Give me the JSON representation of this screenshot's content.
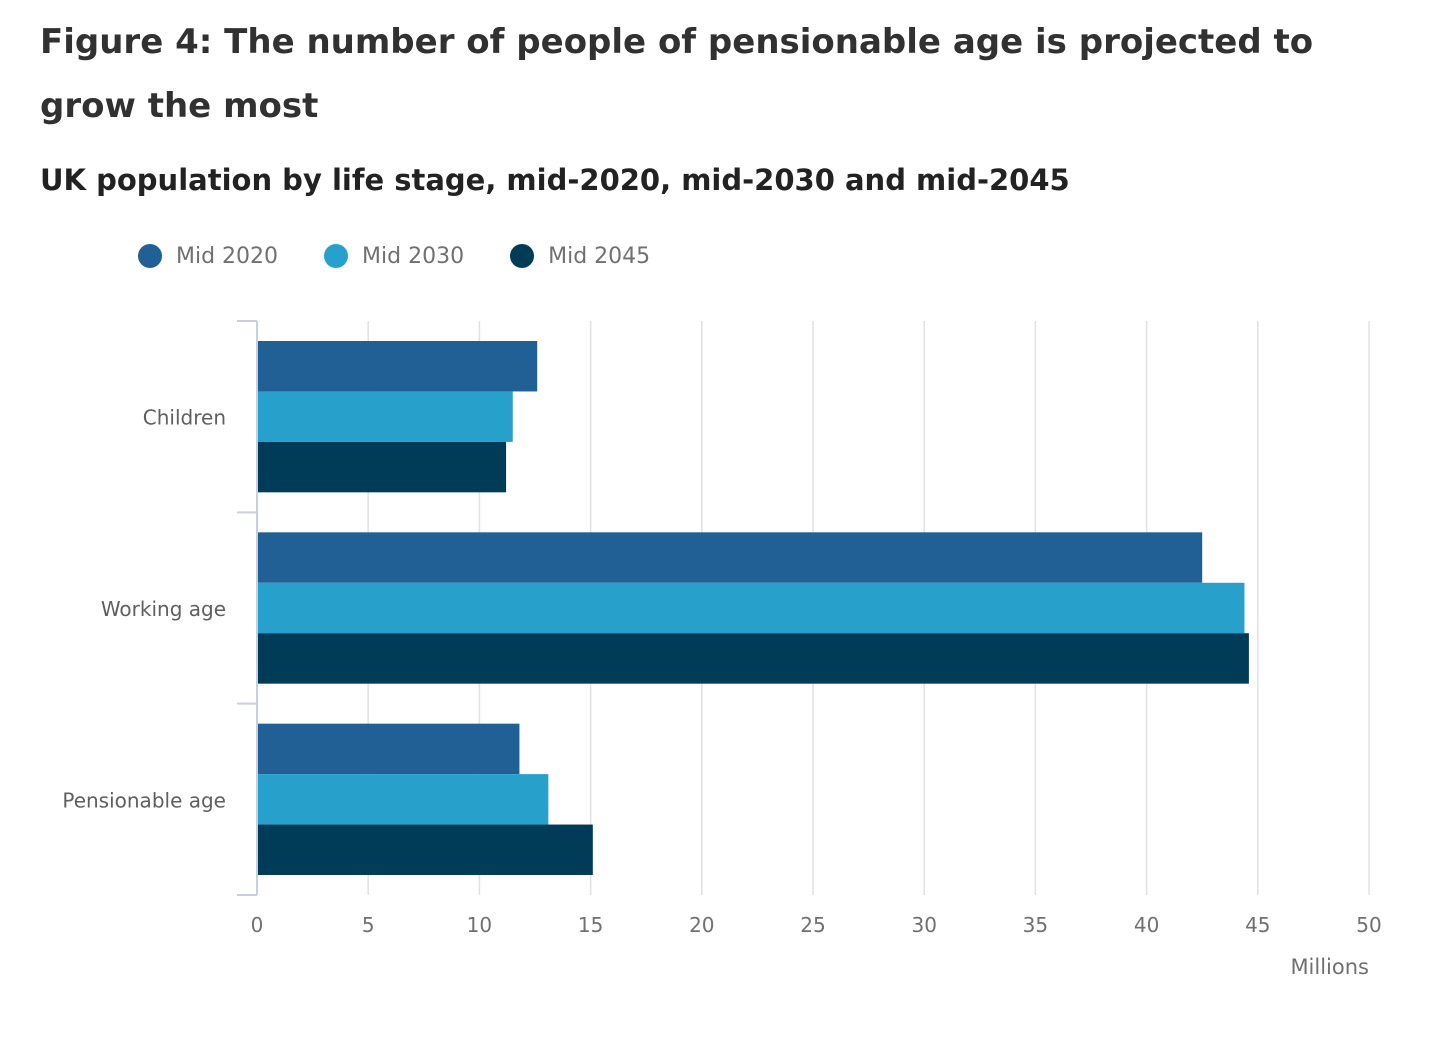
{
  "chart_data": {
    "type": "bar",
    "orientation": "horizontal",
    "title": "Figure 4: The number of people of pensionable age is projected to grow the most",
    "subtitle": "UK population by life stage, mid-2020, mid-2030 and mid-2045",
    "categories": [
      "Children",
      "Working age",
      "Pensionable age"
    ],
    "series": [
      {
        "name": "Mid 2020",
        "color": "#206095",
        "values": [
          12.6,
          42.5,
          11.8
        ]
      },
      {
        "name": "Mid 2030",
        "color": "#27a0cc",
        "values": [
          11.5,
          44.4,
          13.1
        ]
      },
      {
        "name": "Mid 2045",
        "color": "#003c57",
        "values": [
          11.2,
          44.6,
          15.1
        ]
      }
    ],
    "xlabel": "Millions",
    "ylabel": "",
    "xlim": [
      0,
      50
    ],
    "xticks": [
      "0",
      "5",
      "10",
      "15",
      "20",
      "25",
      "30",
      "35",
      "40",
      "45",
      "50"
    ],
    "grid": true,
    "legend_position": "top-left"
  }
}
